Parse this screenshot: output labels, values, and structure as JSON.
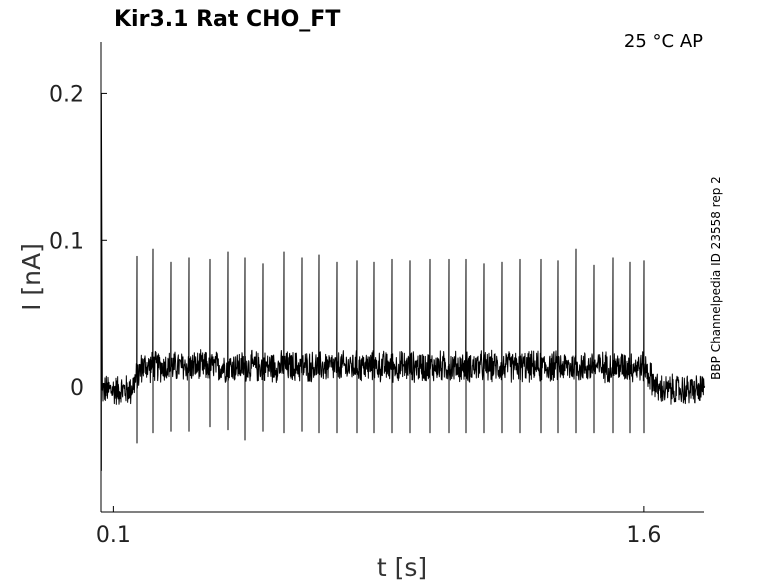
{
  "chart_data": {
    "type": "line",
    "title": "Kir3.1  Rat  CHO_FT",
    "condition": "25 °C  AP",
    "side_label": "BBP Channelpedia ID 23558 rep 2",
    "xlabel": "t [s]",
    "ylabel": "I [nA]",
    "xlim": [
      0.065,
      1.77
    ],
    "ylim": [
      -0.085,
      0.235
    ],
    "xticks": [
      {
        "v": 0.1,
        "label": "0.1"
      },
      {
        "v": 1.6,
        "label": "1.6"
      }
    ],
    "yticks": [
      {
        "v": 0,
        "label": "0"
      },
      {
        "v": 0.1,
        "label": "0.1"
      },
      {
        "v": 0.2,
        "label": "0.2"
      }
    ],
    "grid": false,
    "trace": {
      "t_start": 0.065,
      "t_end": 1.77,
      "initial_transient": {
        "t": 0.066,
        "min": -0.057,
        "max": 0.2
      },
      "pre_stim_level": -0.002,
      "stim_on": 0.16,
      "stim_off": 1.6,
      "stim_level": 0.014,
      "post_stim_level": -0.002,
      "noise_band": 0.012,
      "spikes": [
        {
          "t": 0.167,
          "peak": 0.089,
          "trough": -0.038
        },
        {
          "t": 0.213,
          "peak": 0.094,
          "trough": -0.031
        },
        {
          "t": 0.264,
          "peak": 0.085,
          "trough": -0.03
        },
        {
          "t": 0.313,
          "peak": 0.088,
          "trough": -0.03
        },
        {
          "t": 0.374,
          "peak": 0.087,
          "trough": -0.027
        },
        {
          "t": 0.424,
          "peak": 0.092,
          "trough": -0.029
        },
        {
          "t": 0.473,
          "peak": 0.088,
          "trough": -0.036
        },
        {
          "t": 0.523,
          "peak": 0.084,
          "trough": -0.03
        },
        {
          "t": 0.582,
          "peak": 0.092,
          "trough": -0.031
        },
        {
          "t": 0.634,
          "peak": 0.088,
          "trough": -0.03
        },
        {
          "t": 0.682,
          "peak": 0.09,
          "trough": -0.031
        },
        {
          "t": 0.733,
          "peak": 0.085,
          "trough": -0.031
        },
        {
          "t": 0.79,
          "peak": 0.086,
          "trough": -0.031
        },
        {
          "t": 0.838,
          "peak": 0.085,
          "trough": -0.031
        },
        {
          "t": 0.888,
          "peak": 0.087,
          "trough": -0.031
        },
        {
          "t": 0.94,
          "peak": 0.086,
          "trough": -0.031
        },
        {
          "t": 0.995,
          "peak": 0.087,
          "trough": -0.031
        },
        {
          "t": 1.048,
          "peak": 0.087,
          "trough": -0.031
        },
        {
          "t": 1.097,
          "peak": 0.087,
          "trough": -0.031
        },
        {
          "t": 1.148,
          "peak": 0.084,
          "trough": -0.031
        },
        {
          "t": 1.2,
          "peak": 0.085,
          "trough": -0.031
        },
        {
          "t": 1.25,
          "peak": 0.087,
          "trough": -0.031
        },
        {
          "t": 1.308,
          "peak": 0.087,
          "trough": -0.031
        },
        {
          "t": 1.358,
          "peak": 0.086,
          "trough": -0.031
        },
        {
          "t": 1.408,
          "peak": 0.094,
          "trough": -0.031
        },
        {
          "t": 1.458,
          "peak": 0.083,
          "trough": -0.031
        },
        {
          "t": 1.512,
          "peak": 0.088,
          "trough": -0.031
        },
        {
          "t": 1.561,
          "peak": 0.085,
          "trough": -0.031
        },
        {
          "t": 1.6,
          "peak": 0.086,
          "trough": -0.031
        }
      ]
    }
  }
}
